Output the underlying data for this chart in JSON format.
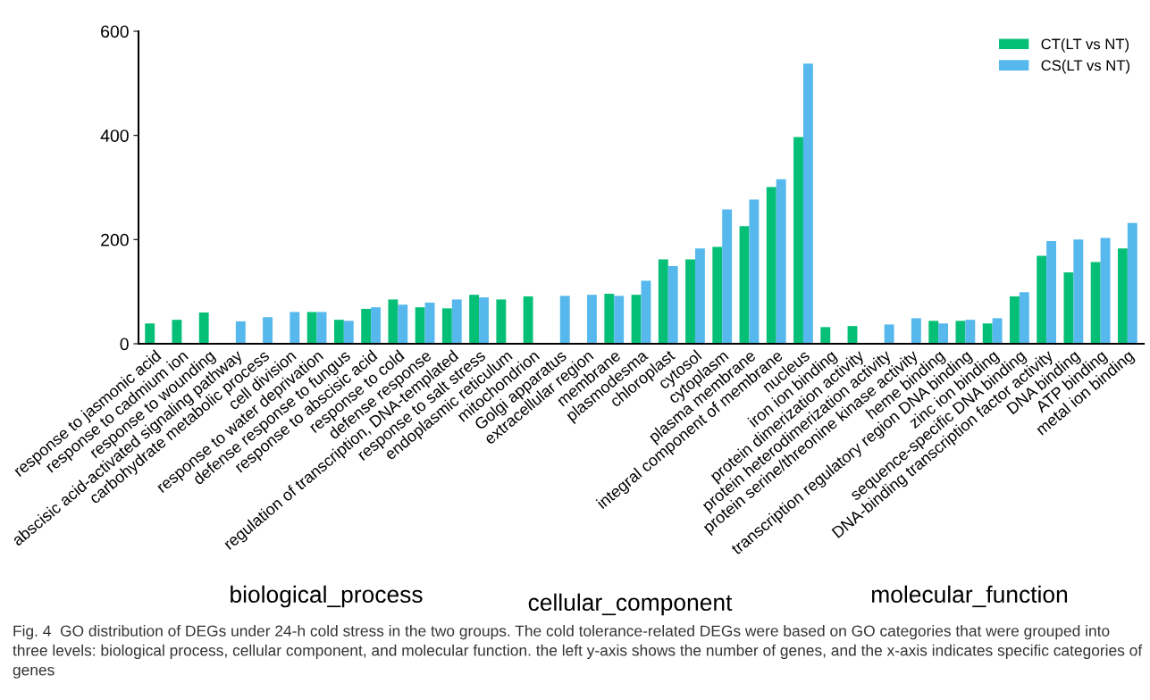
{
  "chart_data": {
    "type": "bar",
    "categories": [
      "response to jasmonic acid",
      "response to cadmium ion",
      "response to wounding",
      "abscisic acid-activated signaling pathway",
      "carbohydrate metabolic process",
      "cell division",
      "response to water deprivation",
      "defense response to fungus",
      "response to abscisic acid",
      "response to cold",
      "defense response",
      "regulation of transcription, DNA-templated",
      "response to salt stress",
      "endoplasmic reticulum",
      "mitochondrion",
      "Golgi apparatus",
      "extracellular region",
      "membrane",
      "plasmodesma",
      "chloroplast",
      "cytosol",
      "cytoplasm",
      "plasma membrane",
      "integral component of membrane",
      "nucleus",
      "iron ion binding",
      "protein dimerization activity",
      "protein heterodimerization activity",
      "protein serine/threonine kinase activity",
      "heme binding",
      "transcription regulatory region DNA binding",
      "zinc ion binding",
      "sequence-specific DNA binding",
      "DNA-binding transcription factor activity",
      "DNA binding",
      "ATP binding",
      "metal ion binding"
    ],
    "series": [
      {
        "name": "CT(LT vs NT)",
        "color": "#06bf77",
        "values": [
          39,
          46,
          60,
          null,
          null,
          null,
          61,
          46,
          67,
          85,
          70,
          68,
          94,
          85,
          91,
          null,
          null,
          96,
          94,
          162,
          162,
          186,
          226,
          301,
          397,
          32,
          34,
          null,
          null,
          44,
          44,
          39,
          91,
          169,
          137,
          157,
          183
        ]
      },
      {
        "name": "CS(LT vs NT)",
        "color": "#56b8ed",
        "values": [
          null,
          null,
          null,
          43,
          51,
          61,
          61,
          44,
          70,
          75,
          79,
          85,
          89,
          null,
          null,
          92,
          94,
          92,
          121,
          149,
          183,
          258,
          277,
          316,
          538,
          null,
          null,
          37,
          49,
          39,
          46,
          49,
          99,
          197,
          200,
          203,
          232
        ]
      }
    ],
    "ylim": [
      0,
      600
    ],
    "yticks": [
      0,
      200,
      400,
      600
    ],
    "grid": false,
    "legend": "top right",
    "annotations": [
      "biological_process",
      "cellular_component",
      "molecular_function",
      "Fig. 4  GO distribution of DEGs under 24-h cold stress in the two groups. The cold tolerance-related DEGs were based on GO categories that were grouped into three levels: biological process, cellular component, and molecular function. the left y-axis shows the number of genes, and the x-axis indicates specific categories of genes"
    ]
  }
}
